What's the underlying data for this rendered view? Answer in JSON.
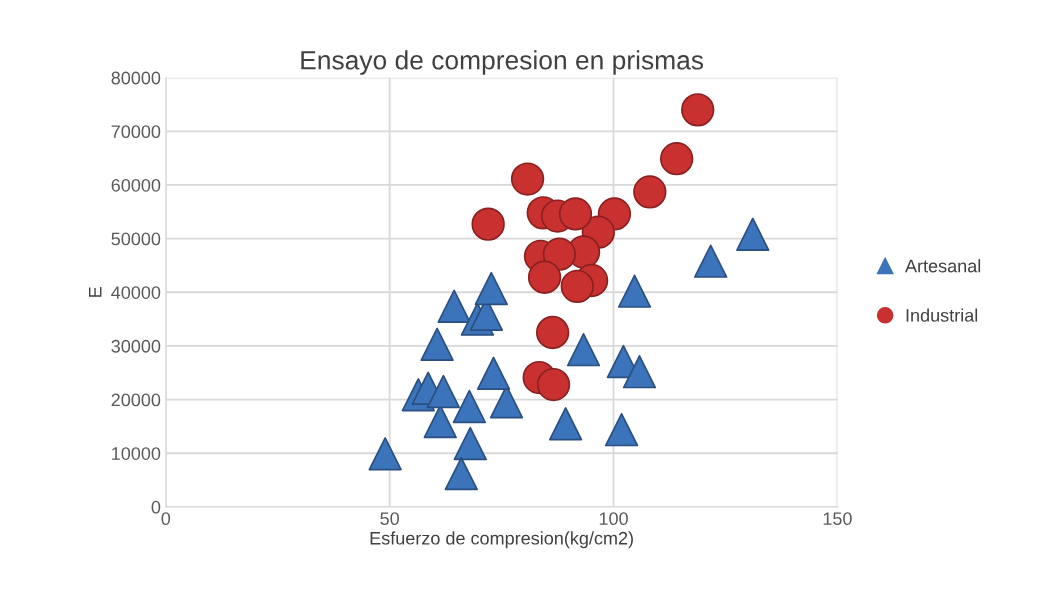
{
  "chart_data": {
    "type": "scatter",
    "title": "Ensayo de compresion en prismas",
    "xlabel": "Esfuerzo de compresion(kg/cm2)",
    "ylabel": "E",
    "xlim": [
      0,
      150
    ],
    "xticks": [
      0,
      50,
      100,
      150
    ],
    "ylim": [
      0,
      80000
    ],
    "yticks": [
      0,
      10000,
      20000,
      30000,
      40000,
      50000,
      60000,
      70000,
      80000
    ],
    "grid": true,
    "legend": "right",
    "series": [
      {
        "name": "Artesanal",
        "color": "#3b74bb",
        "marker": "triangle",
        "x": [
          49.0,
          61.3,
          56.4,
          58.6,
          62.0,
          67.8,
          68.0,
          66.0,
          76.1,
          73.2,
          60.6,
          64.4,
          69.6,
          71.6,
          72.7,
          93.3,
          89.3,
          131.1,
          121.7,
          104.7,
          102.2,
          105.8,
          101.8
        ],
        "values": [
          9900,
          15900,
          20900,
          22100,
          21500,
          18700,
          11800,
          6200,
          19600,
          24900,
          30300,
          37400,
          35000,
          35900,
          40700,
          29300,
          15500,
          50800,
          45800,
          40200,
          27100,
          25200,
          14400
        ]
      },
      {
        "name": "Industrial",
        "color": "#c8312f",
        "marker": "circle",
        "x": [
          118.8,
          114.1,
          108.1,
          100.2,
          96.6,
          93.3,
          95.1,
          80.8,
          72.0,
          84.3,
          87.5,
          91.5,
          83.7,
          87.9,
          84.6,
          91.9,
          86.4,
          83.4,
          86.6
        ],
        "values": [
          74000,
          64900,
          58700,
          54600,
          51200,
          47500,
          42200,
          61100,
          52700,
          54800,
          54200,
          54600,
          46700,
          47100,
          42800,
          41100,
          32500,
          24100,
          22800
        ]
      }
    ]
  }
}
